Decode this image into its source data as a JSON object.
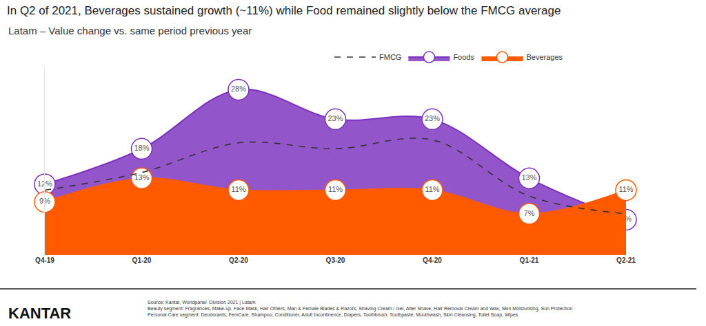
{
  "chart_data": {
    "type": "line",
    "title": "In Q2 of 2021, Beverages sustained growth (~11%) while Food remained slightly below the FMCG average",
    "subtitle": "Latam – Value change vs. same period previous year",
    "categories": [
      "Q4-19",
      "Q1-20",
      "Q2-20",
      "Q3-20",
      "Q4-20",
      "Q1-21",
      "Q2-21"
    ],
    "series": [
      {
        "name": "FMCG",
        "type": "line",
        "color": "#333333",
        "line_style": "dashed",
        "data_labels": false,
        "values": [
          11,
          14,
          19,
          18,
          19.5,
          10,
          7
        ]
      },
      {
        "name": "Foods",
        "type": "area",
        "color": "#7b2fbe",
        "line_style": "solid",
        "marker": "circle",
        "data_labels": true,
        "values": [
          12,
          18,
          28,
          23,
          23,
          13,
          6
        ]
      },
      {
        "name": "Beverages",
        "type": "area",
        "color": "#ff5a00",
        "line_style": "solid",
        "marker": "circle",
        "data_labels": true,
        "values": [
          9,
          13,
          11,
          11,
          11,
          7,
          11
        ]
      }
    ],
    "ylim": [
      0,
      32
    ],
    "yticks": [],
    "tick_labels": "x",
    "grid": false,
    "legend": "top right",
    "logo": "KANTAR",
    "source": [
      "Source: Kantar, Worldpanel  Division 2021 | Latam",
      "Beauty segment: Fragrances, Make-up, Face Mask, Hair Others, Man & Female Blades & Razors, Shaving Cream / Gel, After Shave, Hair Removal Cream and Wax, Skin Moisturising, Sun Protection",
      "Personal Care segment: Deodorants, FemCare, Shampoo, Conditioner, Adult Incontinence, Diapers, Toothbrush, Toothpaste, Mouthwash, Skin Cleansing, Toilet Soap, Wipes"
    ]
  }
}
